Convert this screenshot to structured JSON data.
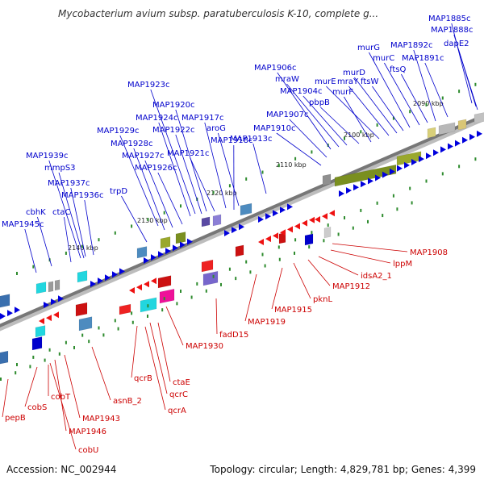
{
  "title": "Mycobacterium avium subsp. paratuberculosis K-10, complete g...",
  "footer": {
    "accession": "Accession: NC_002944",
    "summary": "Topology: circular; Length: 4,829,781 bp; Genes: 4,399"
  },
  "colors": {
    "forward_label": "#0000cc",
    "reverse_label": "#cc0000",
    "backbone": "#777777"
  },
  "ticks": [
    "2090 kbp",
    "2100 kbp",
    "2110 kbp",
    "2120 kbp",
    "2130 kbp",
    "2140 kbp"
  ],
  "forward_genes": [
    "MAP1885c",
    "MAP1888c",
    "dapE2",
    "MAP1892c",
    "MAP1891c",
    "murG",
    "murC",
    "ftsQ",
    "murD",
    "ftsW",
    "murE",
    "mraY",
    "murF",
    "MAP1906c",
    "mraW",
    "MAP1904c",
    "pbpB",
    "MAP1907c",
    "MAP1910c",
    "MAP1913c",
    "MAP1923c",
    "MAP1920c",
    "MAP1924c",
    "MAP1917c",
    "MAP1922c",
    "aroG",
    "MAP1929c",
    "MAP1918c",
    "MAP1928c",
    "MAP1921c",
    "MAP1927c",
    "MAP1926c",
    "MAP1939c",
    "mmpS3",
    "MAP1937c",
    "MAP1936c",
    "trpD",
    "cbhK",
    "ctaC",
    "MAP1945c"
  ],
  "reverse_genes": [
    "MAP1908",
    "lppM",
    "idsA2_1",
    "MAP1912",
    "pknL",
    "MAP1915",
    "MAP1919",
    "fadD15",
    "MAP1930",
    "ctaE",
    "qcrB",
    "qcrC",
    "qcrA",
    "asnB_2",
    "MAP1943",
    "MAP1946",
    "cobU",
    "cobT",
    "cobS",
    "pepB"
  ]
}
